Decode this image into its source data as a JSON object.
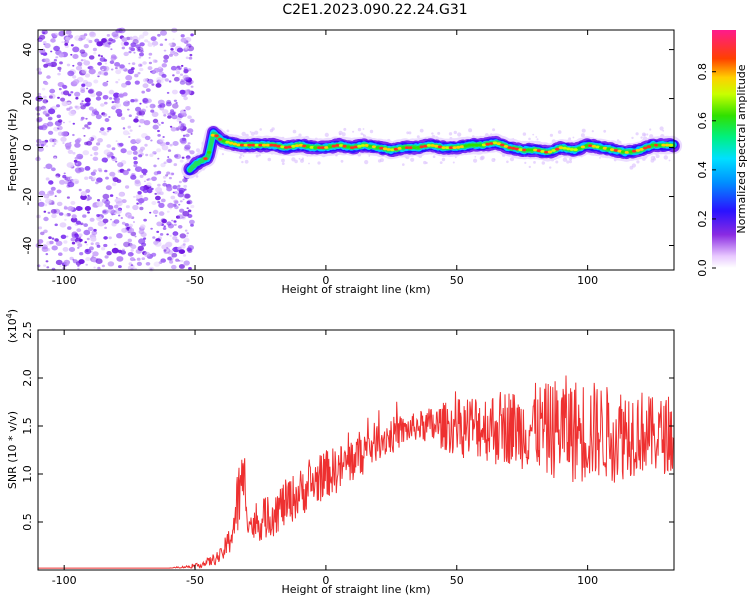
{
  "title": "C2E1.2023.090.22.24.G31",
  "colors": {
    "axis": "#000000",
    "snr_line": "#ee3030",
    "speckle": "#7a2cf0"
  },
  "chart_data": [
    {
      "type": "heatmap",
      "title": "C2E1.2023.090.22.24.G31",
      "xlabel": "Height of straight line (km)",
      "ylabel": "Frequency (Hz)",
      "xlim": [
        -110,
        133
      ],
      "ylim": [
        -50,
        48
      ],
      "xticks": [
        -100,
        -50,
        0,
        50,
        100
      ],
      "yticks": [
        -40,
        -20,
        0,
        20,
        40
      ],
      "colorbar": {
        "label": "Normalized spectral amplitude",
        "range": [
          0,
          0.97
        ],
        "ticks": [
          "0.0",
          "0.2",
          "0.4",
          "0.6",
          "0.8"
        ],
        "colormap": "rainbow (white → violet → blue → cyan → green → yellow → red)"
      },
      "noise_region_x": [
        -110,
        -51
      ],
      "ridge": {
        "x": [
          -52,
          -50,
          -47,
          -45,
          -43,
          -40,
          -37,
          -33,
          -30,
          -25,
          -20,
          -15,
          -10,
          -5,
          0,
          5,
          10,
          15,
          20,
          25,
          30,
          35,
          40,
          45,
          50,
          55,
          60,
          65,
          70,
          75,
          80,
          85,
          90,
          95,
          100,
          105,
          110,
          115,
          120,
          125,
          130,
          133
        ],
        "y": [
          -9,
          -7,
          -5,
          -4,
          6,
          3,
          2,
          1,
          1,
          1,
          1,
          0,
          1,
          0,
          0,
          1,
          0,
          1,
          0,
          -1,
          0,
          0,
          1,
          0,
          0,
          1,
          1,
          2,
          0,
          -1,
          -1,
          -2,
          0,
          -1,
          1,
          0,
          -1,
          -2,
          -1,
          1,
          1,
          1
        ],
        "peak_amplitude": 0.95
      }
    },
    {
      "type": "line",
      "xlabel": "Height of straight line (km)",
      "ylabel": "SNR (10 * v/v)",
      "ylabel_scale": "(x10",
      "ylabel_exp": "4",
      "xlim": [
        -110,
        133
      ],
      "ylim": [
        0,
        2.5
      ],
      "xticks": [
        -100,
        -50,
        0,
        50,
        100
      ],
      "yticks": [
        "0.5",
        "1.0",
        "1.5",
        "2.0",
        "2.5"
      ],
      "series": [
        {
          "x": [
            -110,
            -100,
            -90,
            -80,
            -70,
            -60,
            -55,
            -50,
            -45,
            -40,
            -37,
            -35,
            -33,
            -31,
            -30,
            -28,
            -25,
            -20,
            -15,
            -10,
            -5,
            0,
            5,
            10,
            15,
            20,
            25,
            30,
            35,
            40,
            45,
            50,
            55,
            60,
            65,
            70,
            75,
            80,
            85,
            90,
            95,
            100,
            105,
            110,
            115,
            120,
            125,
            130,
            133
          ],
          "y": [
            0.02,
            0.02,
            0.02,
            0.02,
            0.02,
            0.02,
            0.03,
            0.04,
            0.08,
            0.15,
            0.3,
            0.5,
            0.8,
            0.95,
            0.55,
            0.45,
            0.5,
            0.6,
            0.7,
            0.8,
            0.9,
            1.0,
            1.05,
            1.15,
            1.25,
            1.35,
            1.4,
            1.45,
            1.5,
            1.5,
            1.5,
            1.48,
            1.5,
            1.5,
            1.48,
            1.5,
            1.45,
            1.5,
            1.45,
            1.5,
            1.45,
            1.45,
            1.45,
            1.4,
            1.45,
            1.45,
            1.4,
            1.4,
            1.4
          ],
          "spread": [
            0,
            0,
            0,
            0,
            0,
            0,
            0.01,
            0.02,
            0.05,
            0.08,
            0.15,
            0.3,
            0.4,
            0.3,
            0.15,
            0.15,
            0.2,
            0.25,
            0.25,
            0.25,
            0.25,
            0.25,
            0.25,
            0.25,
            0.25,
            0.2,
            0.2,
            0.15,
            0.15,
            0.2,
            0.25,
            0.3,
            0.35,
            0.35,
            0.4,
            0.4,
            0.4,
            0.45,
            0.5,
            0.55,
            0.55,
            0.55,
            0.5,
            0.5,
            0.5,
            0.45,
            0.4,
            0.4,
            0.4
          ]
        }
      ]
    }
  ]
}
